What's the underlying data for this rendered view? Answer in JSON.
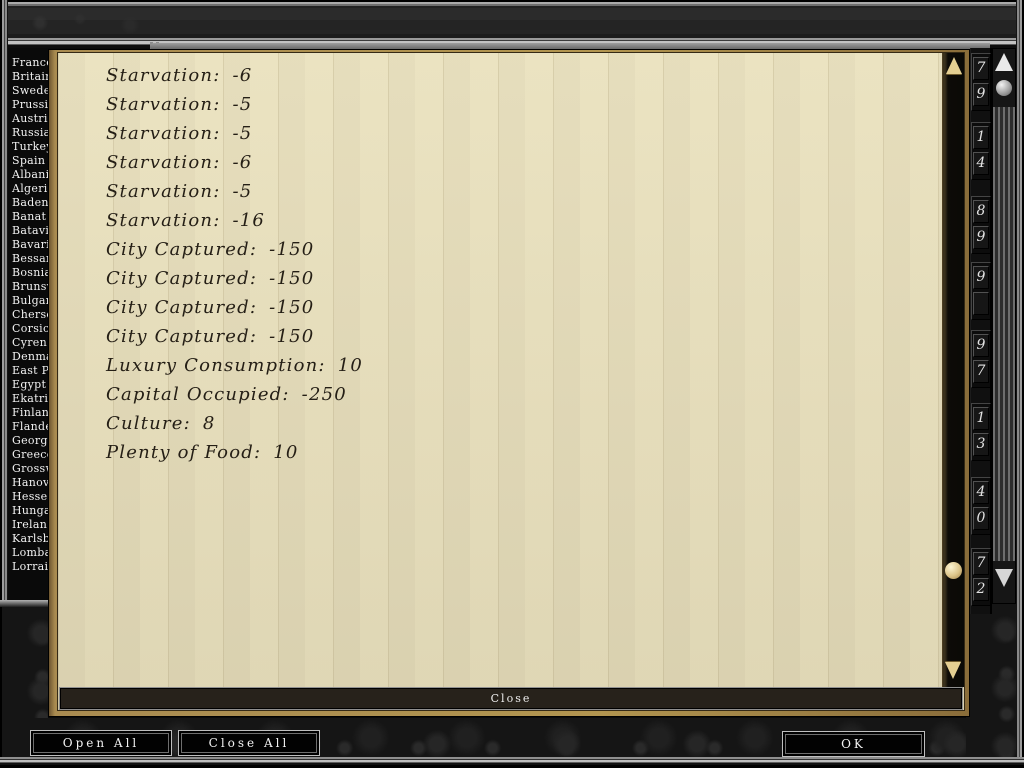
{
  "colors": {
    "parchment": "#eae1bd",
    "gold_border": "#a98b50",
    "ink": "#241e15",
    "metal": "#9c9c9c",
    "cream_scroll": "#e4cf92"
  },
  "sidebar": {
    "countries": [
      "France",
      "Britain",
      "Sweden",
      "Prussia",
      "Austria",
      "Russia",
      "Turkey",
      "Spain",
      "Albania",
      "Algeria",
      "Baden",
      "Banat",
      "Batavia",
      "Bavaria",
      "Bessar",
      "Bosnia",
      "Brunsw",
      "Bulgar",
      "Cherso",
      "Corsic",
      "Cyren",
      "Denma",
      "East P",
      "Egypt",
      "Ekatri",
      "Finlan",
      "Flande",
      "Georgi",
      "Greece",
      "Grossw",
      "Hanov",
      "Hesse",
      "Hunga",
      "Irelan",
      "Karlsb",
      "Lomba",
      "Lorrai"
    ]
  },
  "dialog": {
    "entries": [
      {
        "label": "Starvation",
        "value": "-6"
      },
      {
        "label": "Starvation",
        "value": "-5"
      },
      {
        "label": "Starvation",
        "value": "-5"
      },
      {
        "label": "Starvation",
        "value": "-6"
      },
      {
        "label": "Starvation",
        "value": "-5"
      },
      {
        "label": "Starvation",
        "value": "-16"
      },
      {
        "label": "City Captured",
        "value": "-150"
      },
      {
        "label": "City Captured",
        "value": "-150"
      },
      {
        "label": "City Captured",
        "value": "-150"
      },
      {
        "label": "City Captured",
        "value": "-150"
      },
      {
        "label": "Luxury Consumption",
        "value": "10"
      },
      {
        "label": "Capital Occupied",
        "value": "-250"
      },
      {
        "label": "Culture",
        "value": "8"
      },
      {
        "label": "Plenty of Food",
        "value": "10"
      }
    ],
    "close_button": "Close"
  },
  "score_column": {
    "values": [
      "79",
      "14",
      "89",
      "9",
      "97",
      "13",
      "40",
      "72"
    ]
  },
  "footer": {
    "open_all": "Open All",
    "close_all": "Close All",
    "ok": "OK"
  }
}
